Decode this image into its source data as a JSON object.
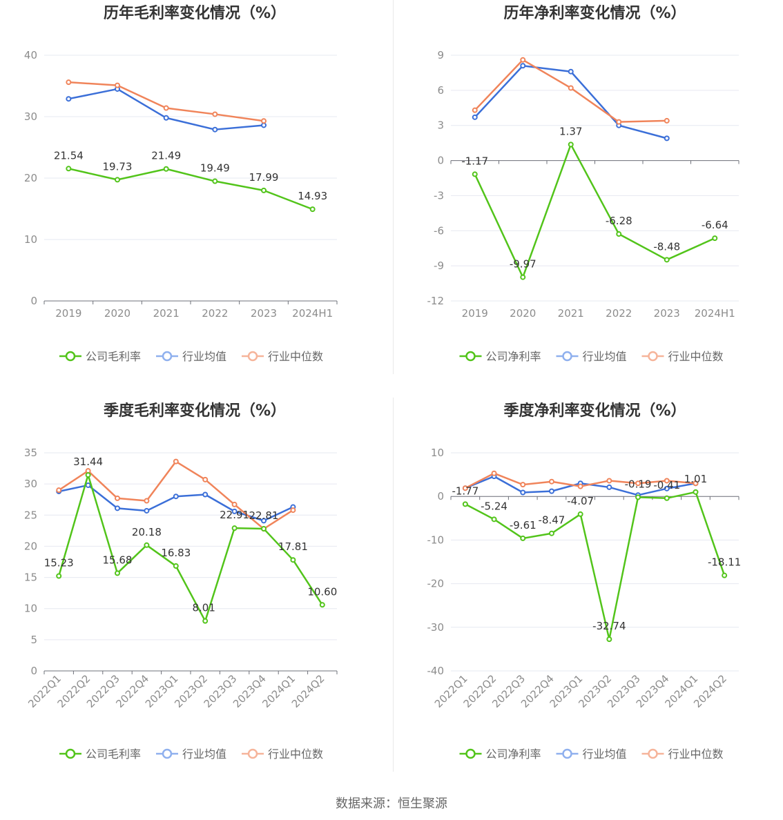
{
  "source_text": "数据来源：恒生聚源",
  "chart_data": [
    {
      "type": "line",
      "title": "历年毛利率变化情况（%）",
      "categories": [
        "2019",
        "2020",
        "2021",
        "2022",
        "2023",
        "2024H1"
      ],
      "ylim": [
        0,
        40
      ],
      "yticks": [
        0,
        10,
        20,
        30,
        40
      ],
      "grid": true,
      "legend_position": "bottom",
      "series": [
        {
          "name": "公司毛利率",
          "color": "#52c41a",
          "values": [
            21.54,
            19.73,
            21.49,
            19.49,
            17.99,
            14.93
          ],
          "labels": [
            "21.54",
            "19.73",
            "21.49",
            "19.49",
            "17.99",
            "14.93"
          ]
        },
        {
          "name": "行业均值",
          "color": "#3b6fd8",
          "values": [
            32.9,
            34.5,
            29.8,
            27.9,
            28.6,
            null
          ]
        },
        {
          "name": "行业中位数",
          "color": "#f0845a",
          "values": [
            35.6,
            35.1,
            31.4,
            30.4,
            29.3,
            null
          ]
        }
      ]
    },
    {
      "type": "line",
      "title": "历年净利率变化情况（%）",
      "categories": [
        "2019",
        "2020",
        "2021",
        "2022",
        "2023",
        "2024H1"
      ],
      "ylim": [
        -12,
        9
      ],
      "yticks": [
        -12,
        -9,
        -6,
        -3,
        0,
        3,
        6,
        9
      ],
      "grid": true,
      "legend_position": "bottom",
      "series": [
        {
          "name": "公司净利率",
          "color": "#52c41a",
          "values": [
            -1.17,
            -9.97,
            1.37,
            -6.28,
            -8.48,
            -6.64
          ],
          "labels": [
            "-1.17",
            "-9.97",
            "1.37",
            "-6.28",
            "-8.48",
            "-6.64"
          ]
        },
        {
          "name": "行业均值",
          "color": "#3b6fd8",
          "values": [
            3.7,
            8.1,
            7.6,
            3.0,
            1.9,
            null
          ]
        },
        {
          "name": "行业中位数",
          "color": "#f0845a",
          "values": [
            4.3,
            8.6,
            6.2,
            3.3,
            3.4,
            null
          ]
        }
      ]
    },
    {
      "type": "line",
      "title": "季度毛利率变化情况（%）",
      "categories": [
        "2022Q1",
        "2022Q2",
        "2022Q3",
        "2022Q4",
        "2023Q1",
        "2023Q2",
        "2023Q3",
        "2023Q4",
        "2024Q1",
        "2024Q2"
      ],
      "ylim": [
        0,
        35
      ],
      "yticks": [
        0,
        5,
        10,
        15,
        20,
        25,
        30,
        35
      ],
      "grid": true,
      "legend_position": "bottom",
      "series": [
        {
          "name": "公司毛利率",
          "color": "#52c41a",
          "values": [
            15.23,
            31.44,
            15.68,
            20.18,
            16.83,
            8.01,
            22.91,
            22.81,
            17.81,
            10.6
          ],
          "labels": [
            "15.23",
            "31.44",
            "15.68",
            "20.18",
            "16.83",
            "8.01",
            "22.91",
            "22.81",
            "17.81",
            "10.60"
          ]
        },
        {
          "name": "行业均值",
          "color": "#3b6fd8",
          "values": [
            28.8,
            29.8,
            26.1,
            25.7,
            28.0,
            28.3,
            25.6,
            24.1,
            26.3,
            null
          ]
        },
        {
          "name": "行业中位数",
          "color": "#f0845a",
          "values": [
            29.0,
            32.1,
            27.7,
            27.3,
            33.6,
            30.7,
            26.7,
            22.8,
            25.8,
            null
          ]
        }
      ]
    },
    {
      "type": "line",
      "title": "季度净利率变化情况（%）",
      "categories": [
        "2022Q1",
        "2022Q2",
        "2022Q3",
        "2022Q4",
        "2023Q1",
        "2023Q2",
        "2023Q3",
        "2023Q4",
        "2024Q1",
        "2024Q2"
      ],
      "ylim": [
        -40,
        10
      ],
      "yticks": [
        -40,
        -30,
        -20,
        -10,
        0,
        10
      ],
      "grid": true,
      "legend_position": "bottom",
      "series": [
        {
          "name": "公司净利率",
          "color": "#52c41a",
          "values": [
            -1.77,
            -5.24,
            -9.61,
            -8.47,
            -4.07,
            -32.74,
            -0.19,
            -0.41,
            1.01,
            -18.11
          ],
          "labels": [
            "-1.77",
            "-5.24",
            "-9.61",
            "-8.47",
            "-4.07",
            "-32.74",
            "-0.19",
            "-0.41",
            "1.01",
            "-18.11"
          ]
        },
        {
          "name": "行业均值",
          "color": "#3b6fd8",
          "values": [
            1.9,
            4.6,
            0.9,
            1.2,
            3.0,
            2.1,
            0.3,
            1.8,
            3.0,
            null
          ]
        },
        {
          "name": "行业中位数",
          "color": "#f0845a",
          "values": [
            1.9,
            5.3,
            2.7,
            3.4,
            2.3,
            3.6,
            3.0,
            3.6,
            3.0,
            null
          ]
        }
      ]
    }
  ]
}
